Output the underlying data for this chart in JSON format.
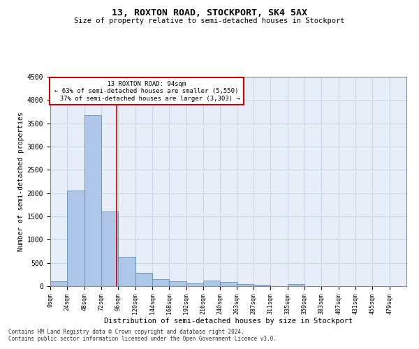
{
  "title": "13, ROXTON ROAD, STOCKPORT, SK4 5AX",
  "subtitle": "Size of property relative to semi-detached houses in Stockport",
  "xlabel": "Distribution of semi-detached houses by size in Stockport",
  "ylabel": "Number of semi-detached properties",
  "property_label": "13 ROXTON ROAD: 94sqm",
  "smaller_pct": 63,
  "smaller_count": 5550,
  "larger_pct": 37,
  "larger_count": 3303,
  "bin_starts": [
    0,
    24,
    48,
    72,
    96,
    120,
    144,
    168,
    192,
    216,
    240,
    263,
    287,
    311,
    335,
    359,
    383,
    407,
    431,
    455,
    479
  ],
  "bar_heights": [
    100,
    2060,
    3680,
    1600,
    630,
    280,
    145,
    100,
    60,
    120,
    85,
    50,
    35,
    0,
    50,
    0,
    0,
    0,
    0,
    0
  ],
  "bar_color": "#aec6e8",
  "bar_edge_color": "#5a8fc0",
  "grid_color": "#c8d4e8",
  "bg_color": "#e8eef8",
  "vline_color": "#cc0000",
  "vline_x": 94,
  "ylim": [
    0,
    4500
  ],
  "yticks": [
    0,
    500,
    1000,
    1500,
    2000,
    2500,
    3000,
    3500,
    4000,
    4500
  ],
  "bin_width": 24,
  "footnote1": "Contains HM Land Registry data © Crown copyright and database right 2024.",
  "footnote2": "Contains public sector information licensed under the Open Government Licence v3.0."
}
